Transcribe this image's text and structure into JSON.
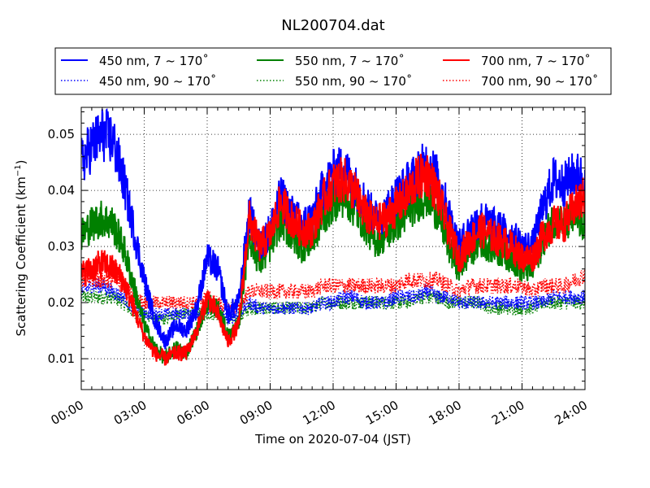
{
  "chart_data": {
    "type": "line",
    "title": "NL200704.dat",
    "xlabel": "Time on 2020-07-04 (JST)",
    "ylabel": "Scattering Coefficient (km",
    "ylabel_sup": "−1",
    "ylabel_end": ")",
    "xlim_hours": [
      0,
      24
    ],
    "ylim": [
      0.0045,
      0.0548
    ],
    "x_ticks": [
      "00:00",
      "03:00",
      "06:00",
      "09:00",
      "12:00",
      "15:00",
      "18:00",
      "21:00",
      "24:00"
    ],
    "y_ticks": [
      "0.01",
      "0.02",
      "0.03",
      "0.04",
      "0.05"
    ],
    "grid": true,
    "legend_position": "top",
    "x_hours": [
      0,
      0.5,
      1,
      1.5,
      2,
      2.5,
      3,
      3.5,
      4,
      4.5,
      5,
      5.5,
      6,
      6.5,
      7,
      7.5,
      8,
      8.5,
      9,
      9.5,
      10,
      10.5,
      11,
      11.5,
      12,
      12.5,
      13,
      13.5,
      14,
      14.5,
      15,
      15.5,
      16,
      16.5,
      17,
      17.5,
      18,
      18.5,
      19,
      19.5,
      20,
      20.5,
      21,
      21.5,
      22,
      22.5,
      23,
      23.5,
      24
    ],
    "series": [
      {
        "name": "450 nm, 7 ~ 170˚",
        "style": "solid",
        "color": "#0000ff",
        "values": [
          0.045,
          0.048,
          0.05,
          0.049,
          0.042,
          0.033,
          0.024,
          0.017,
          0.013,
          0.016,
          0.015,
          0.019,
          0.028,
          0.026,
          0.018,
          0.02,
          0.036,
          0.03,
          0.033,
          0.039,
          0.036,
          0.034,
          0.035,
          0.04,
          0.043,
          0.044,
          0.041,
          0.038,
          0.035,
          0.036,
          0.039,
          0.041,
          0.043,
          0.045,
          0.042,
          0.036,
          0.03,
          0.033,
          0.035,
          0.034,
          0.033,
          0.032,
          0.03,
          0.03,
          0.037,
          0.042,
          0.041,
          0.043,
          0.042
        ]
      },
      {
        "name": "550 nm, 7 ~ 170˚",
        "style": "solid",
        "color": "#008000",
        "values": [
          0.032,
          0.034,
          0.035,
          0.034,
          0.03,
          0.023,
          0.016,
          0.012,
          0.01,
          0.012,
          0.011,
          0.015,
          0.02,
          0.019,
          0.014,
          0.016,
          0.032,
          0.027,
          0.03,
          0.035,
          0.032,
          0.03,
          0.031,
          0.035,
          0.038,
          0.039,
          0.037,
          0.034,
          0.031,
          0.032,
          0.034,
          0.036,
          0.038,
          0.039,
          0.036,
          0.03,
          0.026,
          0.029,
          0.031,
          0.03,
          0.029,
          0.028,
          0.026,
          0.026,
          0.031,
          0.035,
          0.034,
          0.035,
          0.034
        ]
      },
      {
        "name": "700 nm, 7 ~ 170˚",
        "style": "solid",
        "color": "#ff0000",
        "values": [
          0.025,
          0.026,
          0.027,
          0.026,
          0.024,
          0.019,
          0.014,
          0.011,
          0.01,
          0.011,
          0.011,
          0.015,
          0.021,
          0.018,
          0.013,
          0.016,
          0.035,
          0.03,
          0.032,
          0.038,
          0.035,
          0.033,
          0.033,
          0.038,
          0.041,
          0.042,
          0.04,
          0.036,
          0.034,
          0.035,
          0.037,
          0.039,
          0.042,
          0.043,
          0.039,
          0.033,
          0.028,
          0.031,
          0.033,
          0.032,
          0.031,
          0.03,
          0.028,
          0.028,
          0.032,
          0.034,
          0.034,
          0.037,
          0.039
        ]
      },
      {
        "name": "450 nm, 90 ~ 170˚",
        "style": "dotted",
        "color": "#0000ff",
        "values": [
          0.022,
          0.023,
          0.023,
          0.022,
          0.021,
          0.019,
          0.018,
          0.018,
          0.018,
          0.018,
          0.018,
          0.018,
          0.019,
          0.019,
          0.017,
          0.018,
          0.02,
          0.019,
          0.019,
          0.019,
          0.019,
          0.019,
          0.019,
          0.02,
          0.02,
          0.021,
          0.021,
          0.02,
          0.02,
          0.02,
          0.021,
          0.021,
          0.021,
          0.022,
          0.021,
          0.021,
          0.02,
          0.02,
          0.02,
          0.02,
          0.02,
          0.02,
          0.02,
          0.02,
          0.02,
          0.021,
          0.021,
          0.021,
          0.021
        ]
      },
      {
        "name": "550 nm, 90 ~ 170˚",
        "style": "dotted",
        "color": "#008000",
        "values": [
          0.021,
          0.021,
          0.021,
          0.021,
          0.02,
          0.018,
          0.018,
          0.017,
          0.017,
          0.018,
          0.018,
          0.018,
          0.018,
          0.018,
          0.017,
          0.017,
          0.019,
          0.019,
          0.019,
          0.019,
          0.019,
          0.019,
          0.019,
          0.02,
          0.02,
          0.02,
          0.02,
          0.02,
          0.02,
          0.02,
          0.02,
          0.02,
          0.021,
          0.021,
          0.021,
          0.02,
          0.02,
          0.02,
          0.02,
          0.019,
          0.019,
          0.019,
          0.019,
          0.019,
          0.02,
          0.02,
          0.02,
          0.02,
          0.02
        ]
      },
      {
        "name": "700 nm, 90 ~ 170˚",
        "style": "dotted",
        "color": "#ff0000",
        "values": [
          0.024,
          0.024,
          0.024,
          0.024,
          0.023,
          0.021,
          0.02,
          0.02,
          0.02,
          0.02,
          0.02,
          0.02,
          0.021,
          0.02,
          0.019,
          0.019,
          0.022,
          0.022,
          0.022,
          0.022,
          0.022,
          0.022,
          0.022,
          0.023,
          0.023,
          0.023,
          0.023,
          0.023,
          0.023,
          0.023,
          0.023,
          0.024,
          0.024,
          0.024,
          0.024,
          0.023,
          0.022,
          0.023,
          0.023,
          0.023,
          0.023,
          0.023,
          0.023,
          0.022,
          0.023,
          0.023,
          0.023,
          0.024,
          0.025
        ]
      }
    ]
  }
}
